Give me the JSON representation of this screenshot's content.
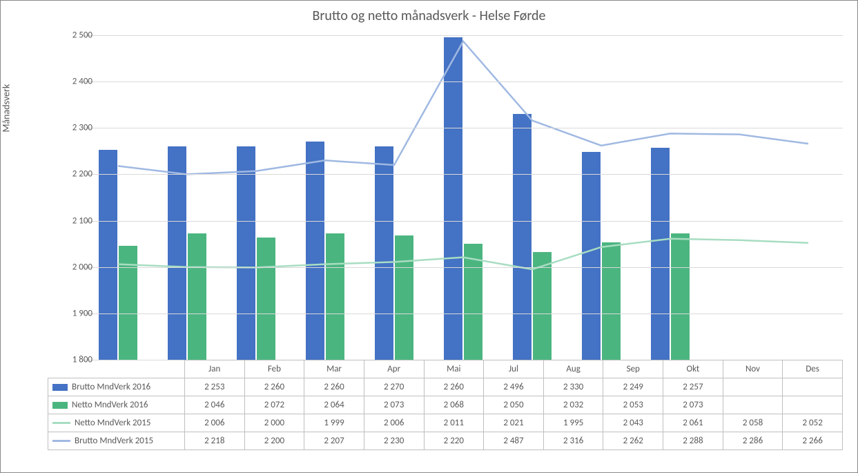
{
  "chart": {
    "type": "bar+line",
    "title": "Brutto og netto månadsverk - Helse Førde",
    "title_fontsize": 20,
    "ylabel": "Månadsverk",
    "ylabel_fontsize": 14,
    "background_color": "#ffffff",
    "grid_color": "#d9d9d9",
    "border_color": "#888888",
    "text_color": "#595959",
    "categories": [
      "Jan",
      "Feb",
      "Mar",
      "Apr",
      "Mai",
      "Jul",
      "Aug",
      "Sep",
      "Okt",
      "Nov",
      "Des"
    ],
    "ylim": [
      1800,
      2500
    ],
    "ytick_step": 100,
    "yticks": [
      "1 800",
      "1 900",
      "2 000",
      "2 100",
      "2 200",
      "2 300",
      "2 400",
      "2 500"
    ],
    "bar_group_width": 0.58,
    "bar_gap": 0.02,
    "line_width": 2.5,
    "series": [
      {
        "key": "brutto2016",
        "label": "Brutto MndVerk 2016",
        "render": "bar",
        "color": "#4472c4",
        "values": [
          2253,
          2260,
          2260,
          2270,
          2260,
          2496,
          2330,
          2249,
          2257,
          null,
          null
        ],
        "display": [
          "2 253",
          "2 260",
          "2 260",
          "2 270",
          "2 260",
          "2 496",
          "2 330",
          "2 249",
          "2 257",
          "",
          ""
        ]
      },
      {
        "key": "netto2016",
        "label": "Netto MndVerk 2016",
        "render": "bar",
        "color": "#4bb580",
        "values": [
          2046,
          2072,
          2064,
          2073,
          2068,
          2050,
          2032,
          2053,
          2073,
          null,
          null
        ],
        "display": [
          "2 046",
          "2 072",
          "2 064",
          "2 073",
          "2 068",
          "2 050",
          "2 032",
          "2 053",
          "2 073",
          "",
          ""
        ]
      },
      {
        "key": "netto2015",
        "label": "Netto MndVerk 2015",
        "render": "line",
        "color": "#a8ddc2",
        "values": [
          2006,
          2000,
          1999,
          2006,
          2011,
          2021,
          1995,
          2043,
          2061,
          2058,
          2052
        ],
        "display": [
          "2 006",
          "2 000",
          "1 999",
          "2 006",
          "2 011",
          "2 021",
          "1 995",
          "2 043",
          "2 061",
          "2 058",
          "2 052"
        ]
      },
      {
        "key": "brutto2015",
        "label": "Brutto MndVerk 2015",
        "render": "line",
        "color": "#a0b9e2",
        "values": [
          2218,
          2200,
          2207,
          2230,
          2220,
          2487,
          2316,
          2262,
          2288,
          2286,
          2266
        ],
        "display": [
          "2 218",
          "2 200",
          "2 207",
          "2 230",
          "2 220",
          "2 487",
          "2 316",
          "2 262",
          "2 288",
          "2 286",
          "2 266"
        ]
      }
    ]
  }
}
